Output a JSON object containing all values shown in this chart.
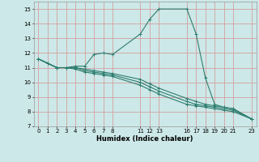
{
  "bg_color": "#cde8e8",
  "grid_color": "#d4a0a0",
  "line_color": "#2d7d6e",
  "xlabel": "Humidex (Indice chaleur)",
  "xlim": [
    -0.5,
    23.5
  ],
  "ylim": [
    7,
    15.5
  ],
  "xticks": [
    0,
    1,
    2,
    3,
    4,
    5,
    6,
    7,
    8,
    11,
    12,
    13,
    16,
    17,
    18,
    19,
    20,
    21,
    23
  ],
  "yticks": [
    7,
    8,
    9,
    10,
    11,
    12,
    13,
    14,
    15
  ],
  "line1_x": [
    0,
    1,
    2,
    3,
    4,
    5,
    6,
    7,
    8,
    11,
    12,
    13,
    16,
    17,
    18,
    19,
    20,
    21,
    23
  ],
  "line1_y": [
    11.6,
    11.3,
    11.0,
    11.0,
    11.1,
    11.1,
    11.9,
    12.0,
    11.9,
    13.3,
    14.3,
    15.0,
    15.0,
    13.3,
    10.3,
    8.5,
    8.3,
    8.2,
    7.5
  ],
  "line2_x": [
    0,
    1,
    2,
    3,
    4,
    5,
    6,
    7,
    8,
    11,
    12,
    13,
    16,
    17,
    18,
    19,
    20,
    21,
    23
  ],
  "line2_y": [
    11.6,
    11.3,
    11.0,
    11.0,
    11.0,
    10.9,
    10.8,
    10.7,
    10.6,
    10.2,
    9.9,
    9.6,
    8.9,
    8.7,
    8.5,
    8.4,
    8.3,
    8.2,
    7.5
  ],
  "line3_x": [
    0,
    1,
    2,
    3,
    4,
    5,
    6,
    7,
    8,
    11,
    12,
    13,
    16,
    17,
    18,
    19,
    20,
    21,
    23
  ],
  "line3_y": [
    11.6,
    11.3,
    11.0,
    11.0,
    11.0,
    10.8,
    10.7,
    10.6,
    10.5,
    10.0,
    9.7,
    9.4,
    8.7,
    8.5,
    8.4,
    8.3,
    8.2,
    8.1,
    7.5
  ],
  "line4_x": [
    0,
    1,
    2,
    3,
    4,
    5,
    6,
    7,
    8,
    11,
    12,
    13,
    16,
    17,
    18,
    19,
    20,
    21,
    23
  ],
  "line4_y": [
    11.6,
    11.3,
    11.0,
    11.0,
    10.9,
    10.7,
    10.6,
    10.5,
    10.4,
    9.8,
    9.5,
    9.2,
    8.5,
    8.4,
    8.3,
    8.2,
    8.1,
    8.0,
    7.5
  ]
}
